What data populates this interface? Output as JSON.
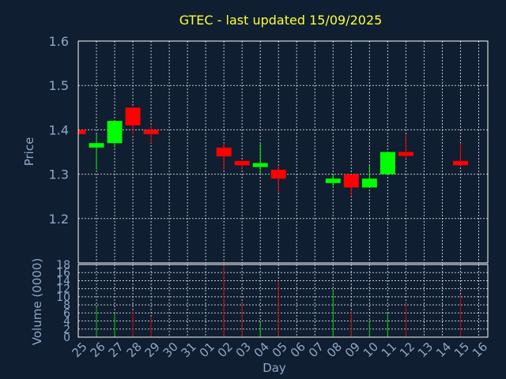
{
  "chart_data": [
    {
      "type": "candlestick",
      "title": "GTEC - last updated 15/09/2025",
      "ylabel": "Price",
      "ylim": [
        1.1,
        1.6
      ],
      "yticks": [
        "1.2",
        "1.3",
        "1.4",
        "1.5",
        "1.6"
      ],
      "grid": true,
      "up_color": "#00ff00",
      "down_color": "#ff0000",
      "categories": [
        "25",
        "26",
        "27",
        "28",
        "29",
        "30",
        "31",
        "01",
        "02",
        "03",
        "04",
        "05",
        "06",
        "07",
        "08",
        "09",
        "10",
        "11",
        "12",
        "13",
        "14",
        "15",
        "16"
      ],
      "candles": [
        {
          "day": "25",
          "open": 1.4,
          "close": 1.39,
          "high": 1.4,
          "low": 1.39
        },
        {
          "day": "26",
          "open": 1.36,
          "close": 1.37,
          "high": 1.39,
          "low": 1.31
        },
        {
          "day": "27",
          "open": 1.37,
          "close": 1.42,
          "high": 1.42,
          "low": 1.36
        },
        {
          "day": "28",
          "open": 1.45,
          "close": 1.41,
          "high": 1.45,
          "low": 1.39
        },
        {
          "day": "29",
          "open": 1.4,
          "close": 1.39,
          "high": 1.41,
          "low": 1.37
        },
        {
          "day": "02",
          "open": 1.36,
          "close": 1.34,
          "high": 1.37,
          "low": 1.31
        },
        {
          "day": "03",
          "open": 1.33,
          "close": 1.32,
          "high": 1.33,
          "low": 1.31
        },
        {
          "day": "04",
          "open": 1.32,
          "close": 1.325,
          "high": 1.37,
          "low": 1.3
        },
        {
          "day": "05",
          "open": 1.31,
          "close": 1.29,
          "high": 1.32,
          "low": 1.26
        },
        {
          "day": "08",
          "open": 1.28,
          "close": 1.29,
          "high": 1.3,
          "low": 1.27
        },
        {
          "day": "09",
          "open": 1.3,
          "close": 1.27,
          "high": 1.3,
          "low": 1.25
        },
        {
          "day": "10",
          "open": 1.27,
          "close": 1.29,
          "high": 1.32,
          "low": 1.27
        },
        {
          "day": "11",
          "open": 1.3,
          "close": 1.35,
          "high": 1.35,
          "low": 1.3
        },
        {
          "day": "12",
          "open": 1.35,
          "close": 1.345,
          "high": 1.39,
          "low": 1.335
        },
        {
          "day": "15",
          "open": 1.33,
          "close": 1.32,
          "high": 1.37,
          "low": 1.32
        }
      ]
    },
    {
      "type": "bar",
      "ylabel": "Volume (0000)",
      "xlabel": "Day",
      "ylim": [
        0,
        18
      ],
      "yticks": [
        "0",
        "2",
        "4",
        "6",
        "8",
        "10",
        "12",
        "14",
        "16",
        "18"
      ],
      "grid": true,
      "categories": [
        "25",
        "26",
        "27",
        "28",
        "29",
        "30",
        "31",
        "01",
        "02",
        "03",
        "04",
        "05",
        "06",
        "07",
        "08",
        "09",
        "10",
        "11",
        "12",
        "13",
        "14",
        "15",
        "16"
      ],
      "bars": [
        {
          "day": "26",
          "value": 7.5,
          "color": "#00cc00"
        },
        {
          "day": "27",
          "value": 6,
          "color": "#00cc00"
        },
        {
          "day": "28",
          "value": 6.5,
          "color": "#cc0000"
        },
        {
          "day": "29",
          "value": 5,
          "color": "#cc0000"
        },
        {
          "day": "02",
          "value": 18,
          "color": "#cc0000"
        },
        {
          "day": "03",
          "value": 8.5,
          "color": "#cc0000"
        },
        {
          "day": "04",
          "value": 3.5,
          "color": "#00cc00"
        },
        {
          "day": "05",
          "value": 14,
          "color": "#cc0000"
        },
        {
          "day": "08",
          "value": 11.5,
          "color": "#00cc00"
        },
        {
          "day": "09",
          "value": 6.5,
          "color": "#cc0000"
        },
        {
          "day": "10",
          "value": 4,
          "color": "#00cc00"
        },
        {
          "day": "11",
          "value": 6,
          "color": "#00cc00"
        },
        {
          "day": "12",
          "value": 8.5,
          "color": "#cc0000"
        },
        {
          "day": "15",
          "value": 10.5,
          "color": "#cc0000"
        }
      ]
    }
  ]
}
